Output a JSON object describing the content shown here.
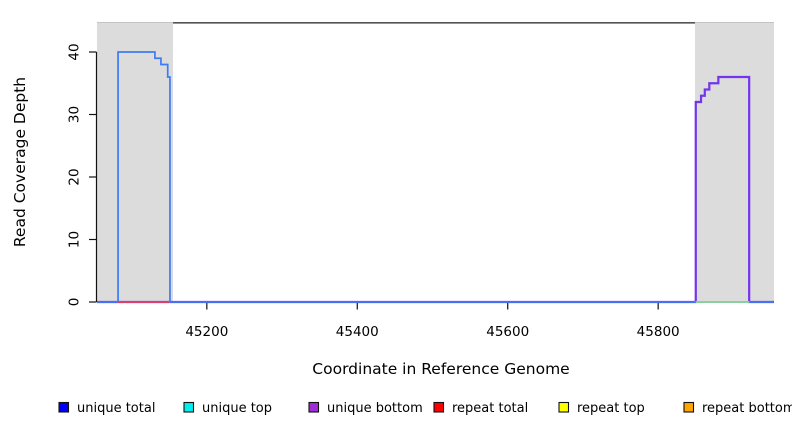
{
  "figure": {
    "y_axis_title": "Read Coverage Depth",
    "x_axis_title": "Coordinate in Reference Genome"
  },
  "chart_data": {
    "type": "line",
    "subtype": "step-coverage-plot",
    "title": "",
    "xlabel": "Coordinate in Reference Genome",
    "ylabel": "Read Coverage Depth",
    "xlim": [
      45054,
      45954
    ],
    "ylim": [
      0,
      44.8
    ],
    "x_ticks": [
      45200,
      45400,
      45600,
      45800
    ],
    "y_ticks": [
      0,
      10,
      20,
      30,
      40
    ],
    "grid": false,
    "legend_position": "bottom",
    "shaded_regions": [
      {
        "x0": 45054,
        "x1": 45155,
        "color": "#dcdcdc"
      },
      {
        "x0": 45849,
        "x1": 45954,
        "color": "#dcdcdc"
      }
    ],
    "top_segment": {
      "x0": 45155,
      "x1": 45849,
      "y": 44.8,
      "color": "#555555"
    },
    "series": [
      {
        "name": "unique bottom",
        "color": "#7434ec",
        "width": 2.2,
        "step_points": [
          [
            45054,
            0
          ],
          [
            45850,
            32
          ],
          [
            45857,
            33
          ],
          [
            45862,
            34
          ],
          [
            45868,
            35
          ],
          [
            45880,
            36
          ],
          [
            45921,
            0
          ],
          [
            45954,
            0
          ]
        ]
      },
      {
        "name": "unique total",
        "color": "#3d7bf4",
        "width": 1.7,
        "step_points": [
          [
            45054,
            0
          ],
          [
            45082,
            40
          ],
          [
            45131,
            39
          ],
          [
            45139,
            38
          ],
          [
            45148,
            36
          ],
          [
            45151,
            0
          ],
          [
            45954,
            0
          ]
        ]
      },
      {
        "name": "repeat total zero segment",
        "color": "#ff4444",
        "width": 1.6,
        "step_points": [
          [
            45082,
            0
          ],
          [
            45151,
            0
          ]
        ]
      },
      {
        "name": "green zero segment",
        "color": "#90d890",
        "width": 1.8,
        "step_points": [
          [
            45850,
            0
          ],
          [
            45921,
            0
          ]
        ]
      }
    ],
    "legend": [
      {
        "label": "unique total",
        "color": "#0000ee"
      },
      {
        "label": "unique top",
        "color": "#00eeee"
      },
      {
        "label": "unique bottom",
        "color": "#9d2ed8"
      },
      {
        "label": "repeat total",
        "color": "#ff0000"
      },
      {
        "label": "repeat top",
        "color": "#ffff00"
      },
      {
        "label": "repeat bottom",
        "color": "#ffa500"
      }
    ]
  }
}
